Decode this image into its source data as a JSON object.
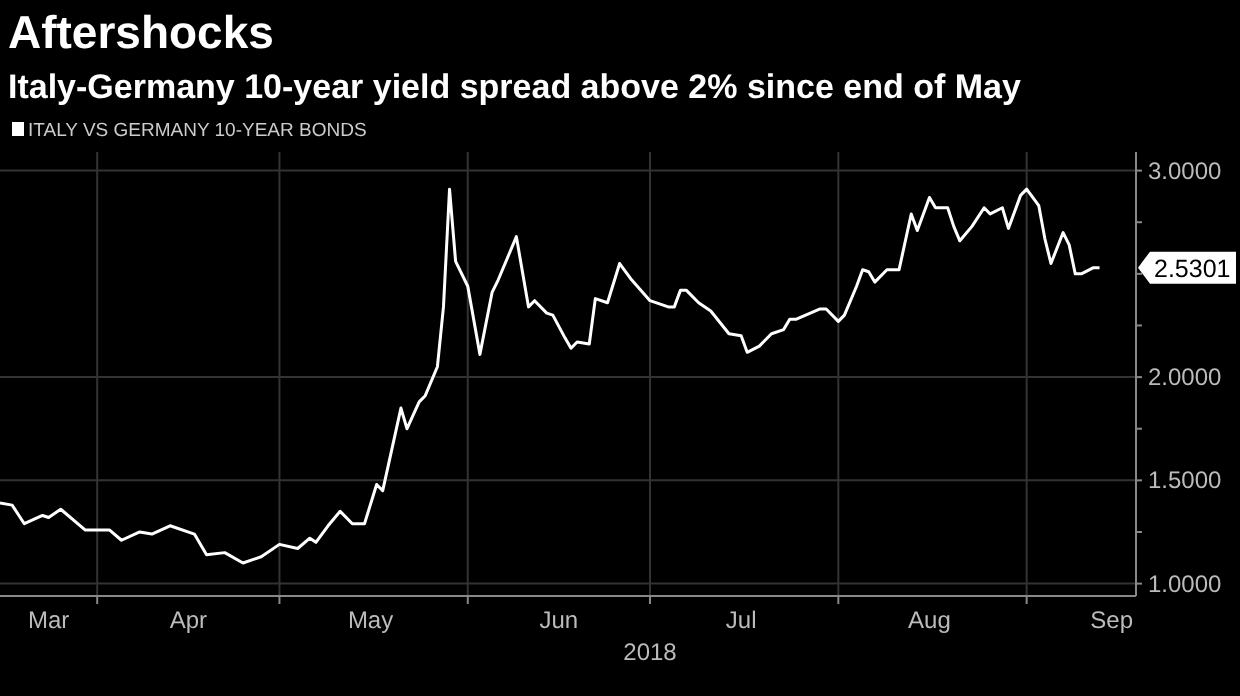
{
  "chart_data": {
    "type": "line",
    "title": "Aftershocks",
    "subtitle": "Italy-Germany 10-year yield spread above 2% since end of May",
    "xlabel": "2018",
    "x": [
      "2018-03-16",
      "2018-03-18",
      "2018-03-20",
      "2018-03-23",
      "2018-03-24",
      "2018-03-26",
      "2018-03-30",
      "2018-04-03",
      "2018-04-05",
      "2018-04-08",
      "2018-04-10",
      "2018-04-13",
      "2018-04-17",
      "2018-04-19",
      "2018-04-22",
      "2018-04-25",
      "2018-04-28",
      "2018-05-01",
      "2018-05-04",
      "2018-05-06",
      "2018-05-07",
      "2018-05-09",
      "2018-05-11",
      "2018-05-13",
      "2018-05-15",
      "2018-05-17",
      "2018-05-18",
      "2018-05-21",
      "2018-05-22",
      "2018-05-24",
      "2018-05-25",
      "2018-05-27",
      "2018-05-28",
      "2018-05-29",
      "2018-05-30",
      "2018-06-01",
      "2018-06-03",
      "2018-06-05",
      "2018-06-06",
      "2018-06-09",
      "2018-06-11",
      "2018-06-12",
      "2018-06-14",
      "2018-06-15",
      "2018-06-17",
      "2018-06-18",
      "2018-06-19",
      "2018-06-21",
      "2018-06-22",
      "2018-06-24",
      "2018-06-26",
      "2018-06-28",
      "2018-07-01",
      "2018-07-04",
      "2018-07-05",
      "2018-07-06",
      "2018-07-07",
      "2018-07-09",
      "2018-07-11",
      "2018-07-14",
      "2018-07-16",
      "2018-07-17",
      "2018-07-19",
      "2018-07-21",
      "2018-07-23",
      "2018-07-24",
      "2018-07-25",
      "2018-07-29",
      "2018-07-30",
      "2018-08-01",
      "2018-08-02",
      "2018-08-04",
      "2018-08-05",
      "2018-08-06",
      "2018-08-07",
      "2018-08-09",
      "2018-08-11",
      "2018-08-13",
      "2018-08-14",
      "2018-08-16",
      "2018-08-17",
      "2018-08-19",
      "2018-08-20",
      "2018-08-21",
      "2018-08-23",
      "2018-08-25",
      "2018-08-26",
      "2018-08-28",
      "2018-08-29",
      "2018-08-31",
      "2018-09-01",
      "2018-09-03",
      "2018-09-04",
      "2018-09-05",
      "2018-09-07",
      "2018-09-08",
      "2018-09-09",
      "2018-09-10",
      "2018-09-12",
      "2018-09-13"
    ],
    "series": [
      {
        "name": "ITALY VS GERMANY 10-YEAR BONDS",
        "color": "#ffffff",
        "values": [
          1.39,
          1.38,
          1.29,
          1.33,
          1.32,
          1.36,
          1.26,
          1.26,
          1.21,
          1.25,
          1.24,
          1.28,
          1.24,
          1.14,
          1.15,
          1.1,
          1.13,
          1.19,
          1.17,
          1.22,
          1.2,
          1.28,
          1.35,
          1.29,
          1.29,
          1.48,
          1.45,
          1.85,
          1.75,
          1.88,
          1.91,
          2.05,
          2.34,
          2.91,
          2.56,
          2.44,
          2.11,
          2.41,
          2.47,
          2.68,
          2.34,
          2.37,
          2.31,
          2.3,
          2.19,
          2.14,
          2.17,
          2.16,
          2.38,
          2.36,
          2.55,
          2.47,
          2.37,
          2.34,
          2.34,
          2.42,
          2.42,
          2.36,
          2.32,
          2.21,
          2.2,
          2.12,
          2.15,
          2.21,
          2.23,
          2.28,
          2.28,
          2.33,
          2.33,
          2.27,
          2.3,
          2.44,
          2.52,
          2.51,
          2.46,
          2.52,
          2.52,
          2.79,
          2.71,
          2.87,
          2.82,
          2.82,
          2.73,
          2.66,
          2.73,
          2.82,
          2.79,
          2.82,
          2.72,
          2.88,
          2.91,
          2.83,
          2.67,
          2.55,
          2.7,
          2.64,
          2.5,
          2.5,
          2.53,
          2.5301
        ]
      }
    ],
    "xlim": [
      "2018-03-16",
      "2018-09-19"
    ],
    "xticks": [
      {
        "value": "2018-04-01",
        "label": null
      },
      {
        "value": "2018-05-01",
        "label": null
      },
      {
        "value": "2018-06-01",
        "label": null
      },
      {
        "value": "2018-07-01",
        "label": null
      },
      {
        "value": "2018-08-01",
        "label": null
      },
      {
        "value": "2018-09-01",
        "label": null
      },
      {
        "value": "2018-03-24",
        "label": "Mar"
      },
      {
        "value": "2018-04-16",
        "label": "Apr"
      },
      {
        "value": "2018-05-16",
        "label": "May"
      },
      {
        "value": "2018-06-16",
        "label": "Jun"
      },
      {
        "value": "2018-07-16",
        "label": "Jul"
      },
      {
        "value": "2018-08-16",
        "label": "Aug"
      },
      {
        "value": "2018-09-15",
        "label": "Sep"
      }
    ],
    "ylim": [
      0.94,
      3.09
    ],
    "yticks": [
      {
        "value": 1,
        "label": "1.0000"
      },
      {
        "value": 1.25,
        "label": null
      },
      {
        "value": 1.5,
        "label": "1.5000"
      },
      {
        "value": 1.75,
        "label": null
      },
      {
        "value": 2,
        "label": "2.0000"
      },
      {
        "value": 2.25,
        "label": null
      },
      {
        "value": 2.5,
        "label": null
      },
      {
        "value": 2.75,
        "label": null
      },
      {
        "value": 3,
        "label": "3.0000"
      }
    ],
    "annotations": [
      "2.5301"
    ],
    "grid": true,
    "legend": "top left",
    "line_style": "solid"
  }
}
